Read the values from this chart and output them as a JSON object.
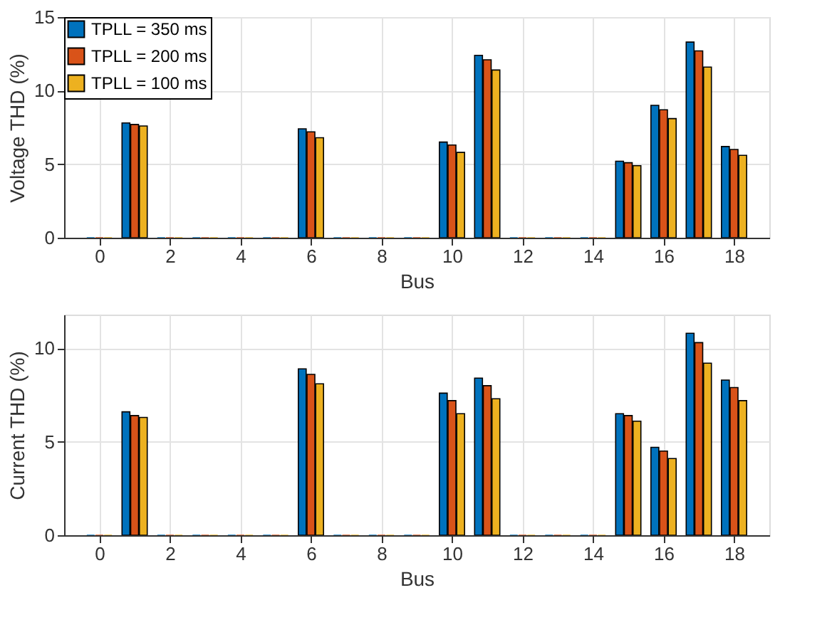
{
  "chart_data": [
    {
      "type": "bar",
      "xlabel": "Bus",
      "ylabel": "Voltage THD (%)",
      "x": [
        0,
        1,
        2,
        3,
        4,
        5,
        6,
        7,
        8,
        9,
        10,
        11,
        12,
        13,
        14,
        15,
        16,
        17,
        18
      ],
      "xlim": [
        -1,
        19
      ],
      "xticks": [
        0,
        2,
        4,
        6,
        8,
        10,
        12,
        14,
        16,
        18
      ],
      "ylim": [
        0,
        15
      ],
      "yticks": [
        0,
        5,
        10,
        15
      ],
      "grid": true,
      "legend": "top left",
      "series": [
        {
          "name": "TPLL = 350 ms",
          "color": "#0072bd",
          "values": [
            0,
            7.8,
            0,
            0,
            0,
            0,
            7.4,
            0,
            0,
            0,
            6.5,
            12.4,
            0,
            0,
            0,
            5.2,
            9.0,
            13.3,
            6.2
          ]
        },
        {
          "name": "TPLL = 200 ms",
          "color": "#d95319",
          "values": [
            0,
            7.7,
            0,
            0,
            0,
            0,
            7.2,
            0,
            0,
            0,
            6.3,
            12.1,
            0,
            0,
            0,
            5.1,
            8.7,
            12.7,
            6.0
          ]
        },
        {
          "name": "TPLL = 100 ms",
          "color": "#edb120",
          "values": [
            0,
            7.6,
            0,
            0,
            0,
            0,
            6.8,
            0,
            0,
            0,
            5.8,
            11.4,
            0,
            0,
            0,
            4.9,
            8.1,
            11.6,
            5.6
          ]
        }
      ]
    },
    {
      "type": "bar",
      "xlabel": "Bus",
      "ylabel": "Current THD (%)",
      "x": [
        0,
        1,
        2,
        3,
        4,
        5,
        6,
        7,
        8,
        9,
        10,
        11,
        12,
        13,
        14,
        15,
        16,
        17,
        18
      ],
      "xlim": [
        -1,
        19
      ],
      "xticks": [
        0,
        2,
        4,
        6,
        8,
        10,
        12,
        14,
        16,
        18
      ],
      "ylim": [
        0,
        11.8
      ],
      "yticks": [
        0,
        5,
        10
      ],
      "grid": true,
      "legend": false,
      "series": [
        {
          "color": "#0072bd",
          "values": [
            0,
            6.6,
            0,
            0,
            0,
            0,
            8.9,
            0,
            0,
            0,
            7.6,
            8.4,
            0,
            0,
            0,
            6.5,
            4.7,
            10.8,
            8.3
          ]
        },
        {
          "color": "#d95319",
          "values": [
            0,
            6.4,
            0,
            0,
            0,
            0,
            8.6,
            0,
            0,
            0,
            7.2,
            8.0,
            0,
            0,
            0,
            6.4,
            4.5,
            10.3,
            7.9
          ]
        },
        {
          "color": "#edb120",
          "values": [
            0,
            6.3,
            0,
            0,
            0,
            0,
            8.1,
            0,
            0,
            0,
            6.5,
            7.3,
            0,
            0,
            0,
            6.1,
            4.1,
            9.2,
            7.2
          ]
        }
      ]
    }
  ]
}
